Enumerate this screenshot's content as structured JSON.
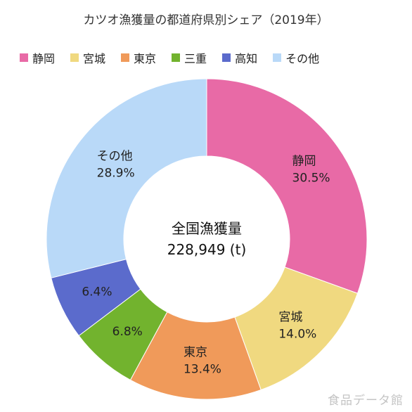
{
  "chart_data": {
    "type": "pie",
    "title": "カツオ漁獲量の都道府県別シェア（2019年）",
    "center_label": {
      "line1": "全国漁獲量",
      "line2": "228,949 (t)"
    },
    "categories": [
      "静岡",
      "宮城",
      "東京",
      "三重",
      "高知",
      "その他"
    ],
    "values": [
      30.5,
      14.0,
      13.4,
      6.8,
      6.4,
      28.9
    ],
    "value_labels": [
      "30.5%",
      "14.0%",
      "13.4%",
      "6.8%",
      "6.4%",
      "28.9%"
    ],
    "slice_labels": [
      "静岡",
      "宮城",
      "東京",
      "",
      "",
      "その他"
    ],
    "colors": [
      "#e86aa6",
      "#f0d980",
      "#f09a5a",
      "#72b32e",
      "#5b6bcc",
      "#b9d9f8"
    ],
    "legend_position": "top",
    "style": "donut",
    "start_angle": "12 o'clock",
    "direction": "clockwise"
  },
  "watermark": "食品データ館"
}
